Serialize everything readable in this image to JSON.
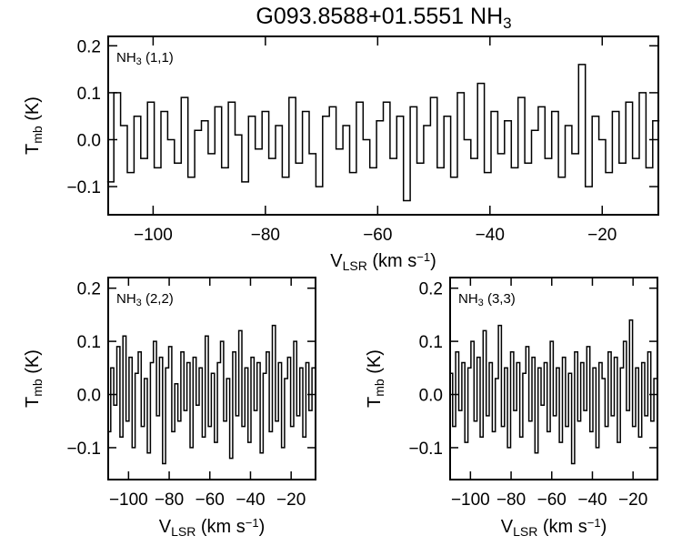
{
  "title_main": "G093.8588+01.5551 NH",
  "title_sub": "3",
  "chart_data": [
    {
      "type": "line",
      "panel": "top",
      "molecule": "NH",
      "molecule_sub": "3",
      "transition": " (1,1)",
      "xlabel_main": "V",
      "xlabel_sub": "LSR",
      "xlabel_unit": " (km s",
      "xlabel_sup": "−1",
      "xlabel_close": ")",
      "ylabel_main": "T",
      "ylabel_sub": "mb",
      "ylabel_unit": " (K)",
      "xlim": [
        -108,
        -10
      ],
      "ylim": [
        -0.16,
        0.22
      ],
      "xticks": [
        -100,
        -80,
        -60,
        -40,
        -20
      ],
      "xtick_labels": [
        "−100",
        "−80",
        "−60",
        "−40",
        "−20"
      ],
      "yticks": [
        -0.1,
        0.0,
        0.1,
        0.2
      ],
      "ytick_labels": [
        "−0.1",
        "0.0",
        "0.1",
        "0.2"
      ],
      "x": [
        -107.6,
        -106.4,
        -105.2,
        -104.0,
        -102.8,
        -101.6,
        -100.4,
        -99.2,
        -98.0,
        -96.8,
        -95.6,
        -94.4,
        -93.2,
        -92.0,
        -90.8,
        -89.6,
        -88.4,
        -87.2,
        -86.0,
        -84.8,
        -83.6,
        -82.4,
        -81.2,
        -80.0,
        -78.8,
        -77.6,
        -76.4,
        -75.2,
        -74.0,
        -72.8,
        -71.6,
        -70.4,
        -69.2,
        -68.0,
        -66.8,
        -65.6,
        -64.4,
        -63.2,
        -62.0,
        -60.8,
        -59.6,
        -58.4,
        -57.2,
        -56.0,
        -54.8,
        -53.6,
        -52.4,
        -51.2,
        -50.0,
        -48.8,
        -47.6,
        -46.4,
        -45.2,
        -44.0,
        -42.8,
        -41.6,
        -40.4,
        -39.2,
        -38.0,
        -36.8,
        -35.6,
        -34.4,
        -33.2,
        -32.0,
        -30.8,
        -29.6,
        -28.4,
        -27.2,
        -26.0,
        -24.8,
        -23.6,
        -22.4,
        -21.2,
        -20.0,
        -18.8,
        -17.6,
        -16.4,
        -15.2,
        -14.0,
        -12.8,
        -11.6,
        -10.4
      ],
      "y": [
        -0.09,
        0.1,
        0.03,
        -0.07,
        0.05,
        -0.04,
        0.08,
        -0.06,
        0.06,
        0.0,
        -0.05,
        0.09,
        -0.08,
        0.02,
        0.04,
        -0.03,
        0.07,
        -0.06,
        0.08,
        0.01,
        -0.09,
        0.05,
        -0.02,
        0.06,
        -0.04,
        0.03,
        -0.08,
        0.09,
        -0.05,
        0.06,
        -0.03,
        -0.1,
        0.05,
        0.07,
        -0.02,
        0.03,
        -0.07,
        0.08,
        0.0,
        -0.06,
        0.04,
        0.08,
        -0.04,
        0.05,
        -0.13,
        0.07,
        -0.05,
        0.03,
        0.09,
        -0.06,
        0.05,
        -0.08,
        0.1,
        0.0,
        -0.04,
        0.12,
        -0.07,
        0.06,
        -0.03,
        0.04,
        -0.06,
        0.09,
        -0.05,
        0.02,
        0.07,
        -0.04,
        0.06,
        -0.08,
        0.03,
        -0.03,
        0.16,
        -0.1,
        0.05,
        0.0,
        -0.07,
        0.06,
        -0.05,
        0.08,
        -0.04,
        0.1,
        -0.06,
        0.04
      ]
    },
    {
      "type": "line",
      "panel": "bottom-left",
      "molecule": "NH",
      "molecule_sub": "3",
      "transition": " (2,2)",
      "xlabel_main": "V",
      "xlabel_sub": "LSR",
      "xlabel_unit": " (km s",
      "xlabel_sup": "−1",
      "xlabel_close": ")",
      "ylabel_main": "T",
      "ylabel_sub": "mb",
      "ylabel_unit": " (K)",
      "xlim": [
        -110,
        -8
      ],
      "ylim": [
        -0.16,
        0.22
      ],
      "xticks": [
        -100,
        -80,
        -60,
        -40,
        -20
      ],
      "xtick_labels": [
        "−100",
        "−80",
        "−60",
        "−40",
        "−20"
      ],
      "yticks": [
        -0.1,
        0.0,
        0.1,
        0.2
      ],
      "ytick_labels": [
        "−0.1",
        "0.0",
        "0.1",
        "0.2"
      ],
      "x": [
        -109.5,
        -108.0,
        -106.5,
        -105.0,
        -103.5,
        -102.0,
        -100.5,
        -99.0,
        -97.5,
        -96.0,
        -94.5,
        -93.0,
        -91.5,
        -90.0,
        -88.5,
        -87.0,
        -85.5,
        -84.0,
        -82.5,
        -81.0,
        -79.5,
        -78.0,
        -76.5,
        -75.0,
        -73.5,
        -72.0,
        -70.5,
        -69.0,
        -67.5,
        -66.0,
        -64.5,
        -63.0,
        -61.5,
        -60.0,
        -58.5,
        -57.0,
        -55.5,
        -54.0,
        -52.5,
        -51.0,
        -49.5,
        -48.0,
        -46.5,
        -45.0,
        -43.5,
        -42.0,
        -40.5,
        -39.0,
        -37.5,
        -36.0,
        -34.5,
        -33.0,
        -31.5,
        -30.0,
        -28.5,
        -27.0,
        -25.5,
        -24.0,
        -22.5,
        -21.0,
        -19.5,
        -18.0,
        -16.5,
        -15.0,
        -13.5,
        -12.0,
        -10.5,
        -9.0
      ],
      "y": [
        -0.07,
        0.05,
        -0.02,
        0.09,
        -0.08,
        0.11,
        -0.05,
        0.07,
        -0.1,
        0.04,
        0.08,
        -0.06,
        0.03,
        -0.11,
        0.06,
        0.1,
        -0.04,
        0.07,
        -0.13,
        0.05,
        0.09,
        -0.07,
        0.02,
        -0.05,
        0.08,
        -0.03,
        0.06,
        -0.1,
        0.07,
        -0.02,
        0.05,
        -0.08,
        0.11,
        -0.06,
        0.04,
        -0.09,
        0.06,
        0.1,
        -0.05,
        0.03,
        -0.12,
        0.08,
        -0.04,
        0.12,
        -0.06,
        0.05,
        -0.09,
        0.07,
        -0.03,
        0.06,
        -0.11,
        0.04,
        0.08,
        -0.07,
        0.13,
        -0.05,
        0.06,
        -0.1,
        0.03,
        0.07,
        -0.06,
        0.1,
        -0.04,
        0.05,
        -0.08,
        0.06,
        -0.03,
        0.05
      ]
    },
    {
      "type": "line",
      "panel": "bottom-right",
      "molecule": "NH",
      "molecule_sub": "3",
      "transition": " (3,3)",
      "xlabel_main": "V",
      "xlabel_sub": "LSR",
      "xlabel_unit": " (km s",
      "xlabel_sup": "−1",
      "xlabel_close": ")",
      "ylabel_main": "T",
      "ylabel_sub": "mb",
      "ylabel_unit": " (K)",
      "xlim": [
        -110,
        -8
      ],
      "ylim": [
        -0.16,
        0.22
      ],
      "xticks": [
        -100,
        -80,
        -60,
        -40,
        -20
      ],
      "xtick_labels": [
        "−100",
        "−80",
        "−60",
        "−40",
        "−20"
      ],
      "yticks": [
        -0.1,
        0.0,
        0.1,
        0.2
      ],
      "ytick_labels": [
        "−0.1",
        "0.0",
        "0.1",
        "0.2"
      ],
      "x": [
        -109.5,
        -108.0,
        -106.5,
        -105.0,
        -103.5,
        -102.0,
        -100.5,
        -99.0,
        -97.5,
        -96.0,
        -94.5,
        -93.0,
        -91.5,
        -90.0,
        -88.5,
        -87.0,
        -85.5,
        -84.0,
        -82.5,
        -81.0,
        -79.5,
        -78.0,
        -76.5,
        -75.0,
        -73.5,
        -72.0,
        -70.5,
        -69.0,
        -67.5,
        -66.0,
        -64.5,
        -63.0,
        -61.5,
        -60.0,
        -58.5,
        -57.0,
        -55.5,
        -54.0,
        -52.5,
        -51.0,
        -49.5,
        -48.0,
        -46.5,
        -45.0,
        -43.5,
        -42.0,
        -40.5,
        -39.0,
        -37.5,
        -36.0,
        -34.5,
        -33.0,
        -31.5,
        -30.0,
        -28.5,
        -27.0,
        -25.5,
        -24.0,
        -22.5,
        -21.0,
        -19.5,
        -18.0,
        -16.5,
        -15.0,
        -13.5,
        -12.0,
        -10.5,
        -9.0
      ],
      "y": [
        0.04,
        -0.06,
        0.08,
        -0.03,
        0.06,
        -0.09,
        0.05,
        0.1,
        -0.05,
        0.07,
        -0.08,
        0.12,
        -0.04,
        0.06,
        -0.07,
        0.03,
        0.13,
        -0.06,
        0.05,
        -0.1,
        0.08,
        -0.03,
        0.06,
        -0.08,
        0.04,
        0.09,
        -0.05,
        0.07,
        -0.11,
        0.05,
        -0.02,
        0.06,
        -0.07,
        0.1,
        -0.04,
        0.05,
        -0.09,
        0.07,
        -0.06,
        0.04,
        -0.13,
        0.08,
        -0.05,
        0.06,
        -0.03,
        0.09,
        -0.07,
        0.05,
        -0.1,
        0.06,
        0.03,
        -0.06,
        0.08,
        -0.04,
        0.07,
        -0.09,
        0.05,
        0.1,
        -0.03,
        0.14,
        -0.06,
        0.05,
        -0.08,
        0.06,
        -0.04,
        0.08,
        -0.05,
        0.03
      ]
    }
  ]
}
